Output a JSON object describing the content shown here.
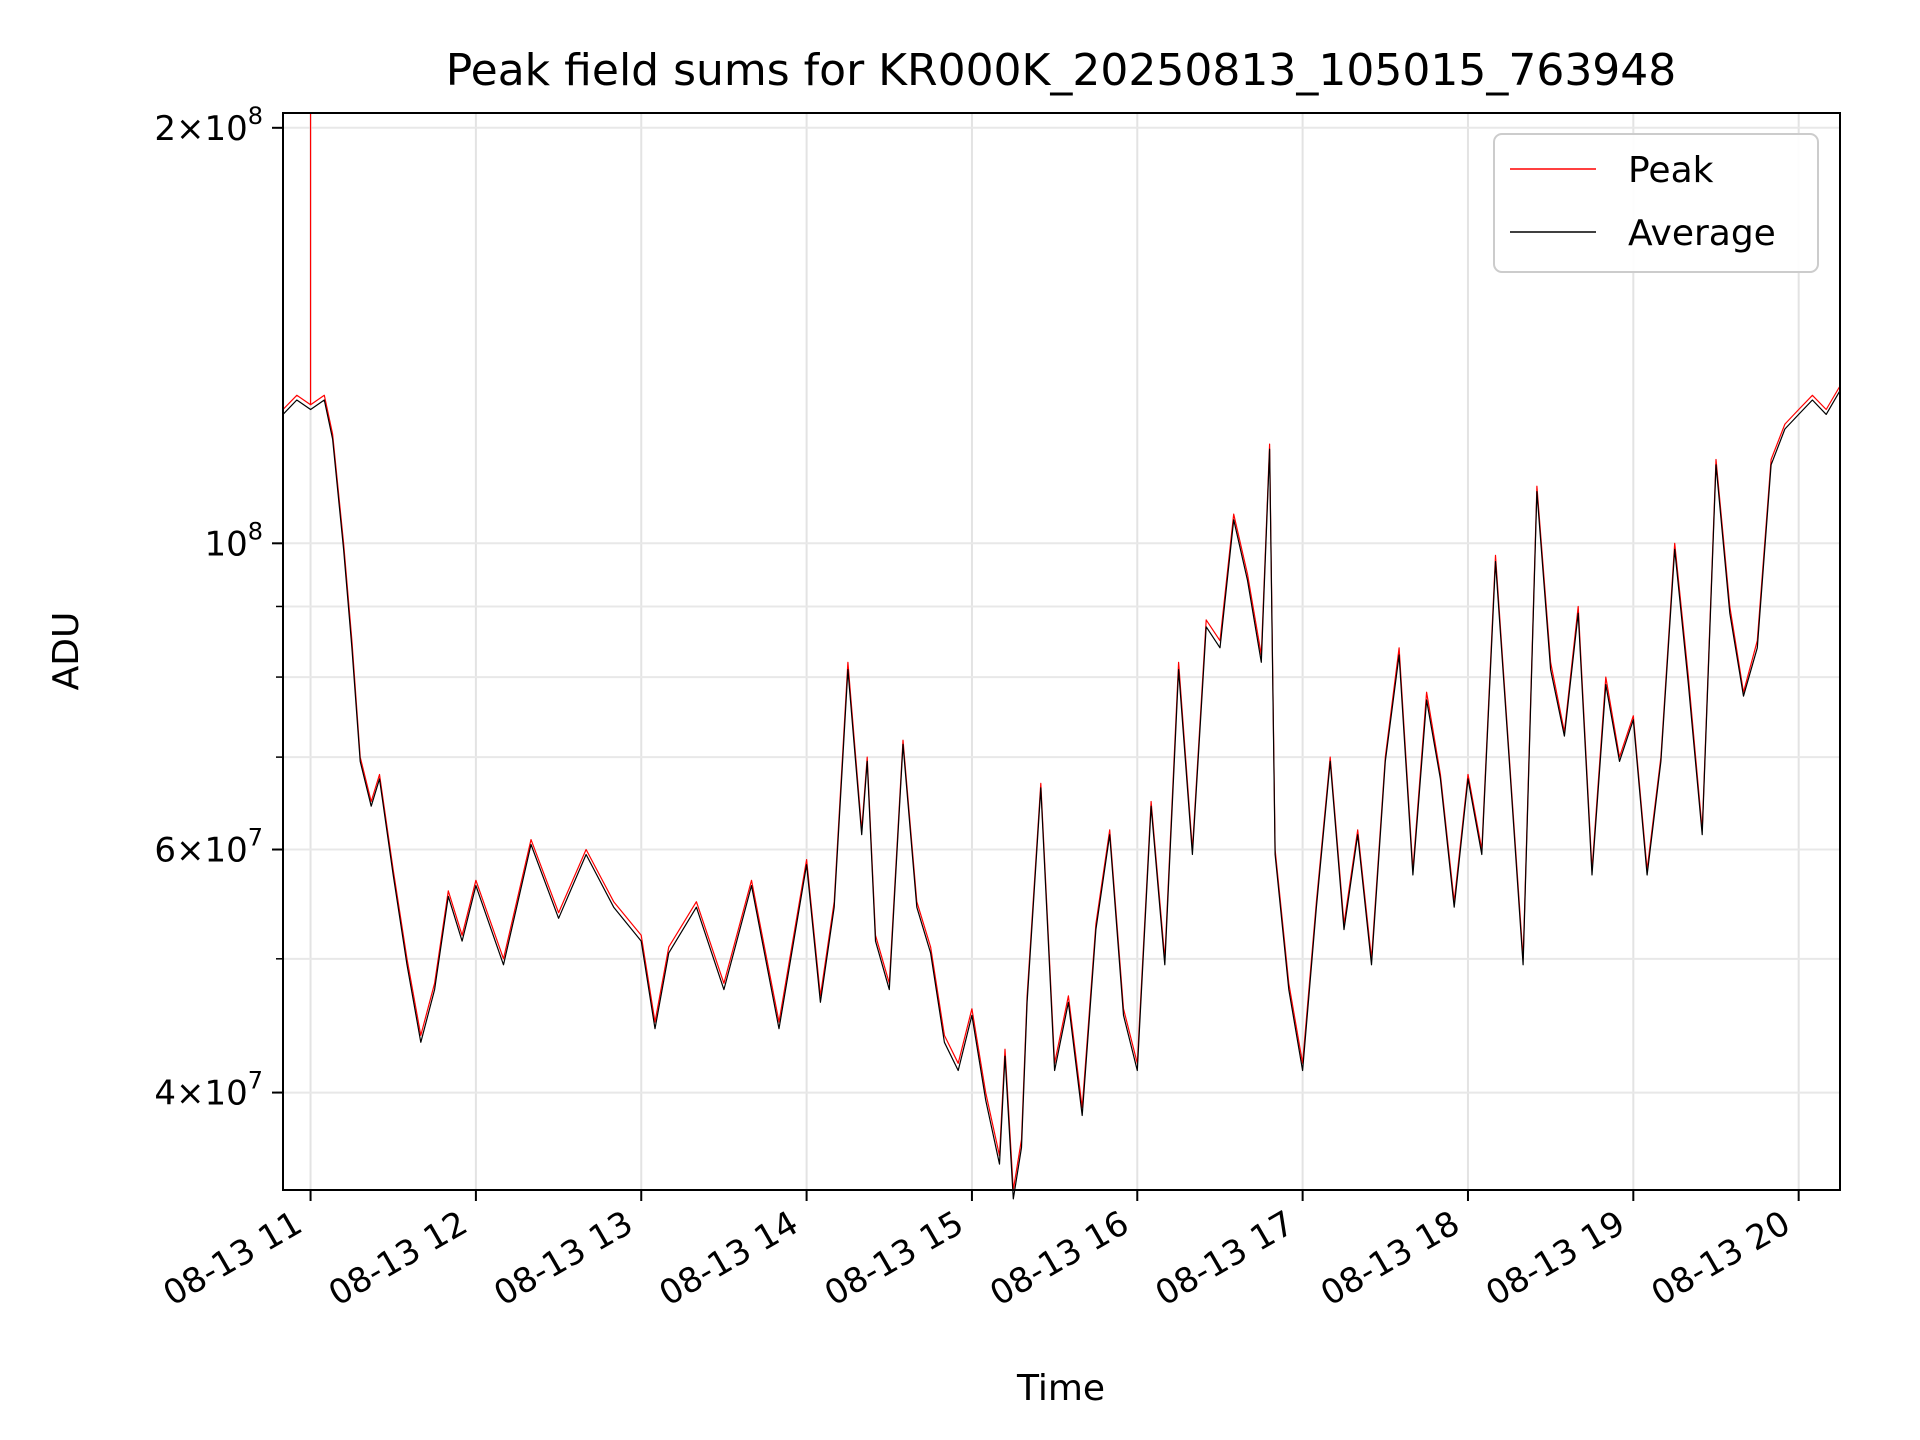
{
  "chart_data": {
    "type": "line",
    "title": "Peak field sums for KR000K_20250813_105015_763948",
    "xlabel": "Time",
    "ylabel": "ADU",
    "yscale": "log",
    "xlim": [
      "2025-08-13T10:50:00",
      "2025-08-13T20:15:00"
    ],
    "ylim": [
      34000000,
      205000000
    ],
    "x_tick_labels": [
      "08-13 11",
      "08-13 12",
      "08-13 13",
      "08-13 14",
      "08-13 15",
      "08-13 16",
      "08-13 17",
      "08-13 18",
      "08-13 19",
      "08-13 20"
    ],
    "y_tick_labels": [
      {
        "value": 40000000,
        "mantissa": "4",
        "exponent": "7"
      },
      {
        "value": 60000000,
        "mantissa": "6",
        "exponent": "7"
      },
      {
        "value": 100000000,
        "mantissa": "",
        "exponent": "8"
      },
      {
        "value": 200000000,
        "mantissa": "2",
        "exponent": "8"
      }
    ],
    "grid": true,
    "legend_position": "top-right",
    "series": [
      {
        "name": "Peak",
        "color": "#ff0000",
        "spike": {
          "x": "2025-08-13T11:00:00",
          "y": 210000000
        },
        "x": [
          "2025-08-13T10:50:00",
          "2025-08-13T10:55:00",
          "2025-08-13T11:00:00",
          "2025-08-13T11:05:00",
          "2025-08-13T11:08:00",
          "2025-08-13T11:12:00",
          "2025-08-13T11:15:00",
          "2025-08-13T11:18:00",
          "2025-08-13T11:22:00",
          "2025-08-13T11:25:00",
          "2025-08-13T11:30:00",
          "2025-08-13T11:35:00",
          "2025-08-13T11:40:00",
          "2025-08-13T11:45:00",
          "2025-08-13T11:50:00",
          "2025-08-13T11:55:00",
          "2025-08-13T12:00:00",
          "2025-08-13T12:10:00",
          "2025-08-13T12:20:00",
          "2025-08-13T12:30:00",
          "2025-08-13T12:40:00",
          "2025-08-13T12:50:00",
          "2025-08-13T13:00:00",
          "2025-08-13T13:05:00",
          "2025-08-13T13:10:00",
          "2025-08-13T13:20:00",
          "2025-08-13T13:30:00",
          "2025-08-13T13:40:00",
          "2025-08-13T13:50:00",
          "2025-08-13T14:00:00",
          "2025-08-13T14:05:00",
          "2025-08-13T14:10:00",
          "2025-08-13T14:15:00",
          "2025-08-13T14:20:00",
          "2025-08-13T14:22:00",
          "2025-08-13T14:25:00",
          "2025-08-13T14:30:00",
          "2025-08-13T14:35:00",
          "2025-08-13T14:40:00",
          "2025-08-13T14:45:00",
          "2025-08-13T14:50:00",
          "2025-08-13T14:55:00",
          "2025-08-13T15:00:00",
          "2025-08-13T15:05:00",
          "2025-08-13T15:10:00",
          "2025-08-13T15:12:00",
          "2025-08-13T15:15:00",
          "2025-08-13T15:18:00",
          "2025-08-13T15:20:00",
          "2025-08-13T15:25:00",
          "2025-08-13T15:30:00",
          "2025-08-13T15:35:00",
          "2025-08-13T15:40:00",
          "2025-08-13T15:45:00",
          "2025-08-13T15:50:00",
          "2025-08-13T15:55:00",
          "2025-08-13T16:00:00",
          "2025-08-13T16:05:00",
          "2025-08-13T16:10:00",
          "2025-08-13T16:15:00",
          "2025-08-13T16:20:00",
          "2025-08-13T16:25:00",
          "2025-08-13T16:30:00",
          "2025-08-13T16:35:00",
          "2025-08-13T16:40:00",
          "2025-08-13T16:45:00",
          "2025-08-13T16:48:00",
          "2025-08-13T16:50:00",
          "2025-08-13T16:55:00",
          "2025-08-13T17:00:00",
          "2025-08-13T17:05:00",
          "2025-08-13T17:10:00",
          "2025-08-13T17:15:00",
          "2025-08-13T17:20:00",
          "2025-08-13T17:25:00",
          "2025-08-13T17:30:00",
          "2025-08-13T17:35:00",
          "2025-08-13T17:40:00",
          "2025-08-13T17:45:00",
          "2025-08-13T17:50:00",
          "2025-08-13T17:55:00",
          "2025-08-13T18:00:00",
          "2025-08-13T18:05:00",
          "2025-08-13T18:10:00",
          "2025-08-13T18:15:00",
          "2025-08-13T18:20:00",
          "2025-08-13T18:25:00",
          "2025-08-13T18:30:00",
          "2025-08-13T18:35:00",
          "2025-08-13T18:40:00",
          "2025-08-13T18:45:00",
          "2025-08-13T18:50:00",
          "2025-08-13T18:55:00",
          "2025-08-13T19:00:00",
          "2025-08-13T19:05:00",
          "2025-08-13T19:10:00",
          "2025-08-13T19:15:00",
          "2025-08-13T19:20:00",
          "2025-08-13T19:25:00",
          "2025-08-13T19:30:00",
          "2025-08-13T19:35:00",
          "2025-08-13T19:40:00",
          "2025-08-13T19:45:00",
          "2025-08-13T19:50:00",
          "2025-08-13T19:55:00",
          "2025-08-13T20:00:00",
          "2025-08-13T20:05:00",
          "2025-08-13T20:10:00",
          "2025-08-13T20:15:00"
        ],
        "y": [
          125000000,
          128000000,
          126000000,
          128000000,
          120000000,
          100000000,
          85000000,
          70000000,
          65000000,
          68000000,
          58000000,
          50000000,
          44000000,
          48000000,
          56000000,
          52000000,
          57000000,
          50000000,
          61000000,
          54000000,
          60000000,
          55000000,
          52000000,
          45000000,
          51000000,
          55000000,
          48000000,
          57000000,
          45000000,
          59000000,
          47000000,
          55000000,
          82000000,
          62000000,
          70000000,
          52000000,
          48000000,
          72000000,
          55000000,
          51000000,
          44000000,
          42000000,
          46000000,
          40000000,
          36000000,
          43000000,
          34000000,
          37000000,
          47000000,
          67000000,
          42000000,
          47000000,
          39000000,
          53000000,
          62000000,
          46000000,
          42000000,
          65000000,
          50000000,
          82000000,
          60000000,
          88000000,
          85000000,
          105000000,
          95000000,
          83000000,
          118000000,
          60000000,
          48000000,
          42000000,
          55000000,
          70000000,
          53000000,
          62000000,
          50000000,
          70000000,
          84000000,
          58000000,
          78000000,
          68000000,
          55000000,
          68000000,
          60000000,
          98000000,
          70000000,
          50000000,
          110000000,
          82000000,
          73000000,
          90000000,
          58000000,
          80000000,
          70000000,
          75000000,
          58000000,
          70000000,
          100000000,
          80000000,
          62000000,
          115000000,
          90000000,
          78000000,
          85000000,
          115000000,
          122000000,
          125000000,
          128000000,
          125000000,
          130000000
        ],
        "width": 1.2
      },
      {
        "name": "Average",
        "color": "#000000",
        "x": [
          "2025-08-13T10:50:00",
          "2025-08-13T10:55:00",
          "2025-08-13T11:00:00",
          "2025-08-13T11:05:00",
          "2025-08-13T11:08:00",
          "2025-08-13T11:12:00",
          "2025-08-13T11:15:00",
          "2025-08-13T11:18:00",
          "2025-08-13T11:22:00",
          "2025-08-13T11:25:00",
          "2025-08-13T11:30:00",
          "2025-08-13T11:35:00",
          "2025-08-13T11:40:00",
          "2025-08-13T11:45:00",
          "2025-08-13T11:50:00",
          "2025-08-13T11:55:00",
          "2025-08-13T12:00:00",
          "2025-08-13T12:10:00",
          "2025-08-13T12:20:00",
          "2025-08-13T12:30:00",
          "2025-08-13T12:40:00",
          "2025-08-13T12:50:00",
          "2025-08-13T13:00:00",
          "2025-08-13T13:05:00",
          "2025-08-13T13:10:00",
          "2025-08-13T13:20:00",
          "2025-08-13T13:30:00",
          "2025-08-13T13:40:00",
          "2025-08-13T13:50:00",
          "2025-08-13T14:00:00",
          "2025-08-13T14:05:00",
          "2025-08-13T14:10:00",
          "2025-08-13T14:15:00",
          "2025-08-13T14:20:00",
          "2025-08-13T14:22:00",
          "2025-08-13T14:25:00",
          "2025-08-13T14:30:00",
          "2025-08-13T14:35:00",
          "2025-08-13T14:40:00",
          "2025-08-13T14:45:00",
          "2025-08-13T14:50:00",
          "2025-08-13T14:55:00",
          "2025-08-13T15:00:00",
          "2025-08-13T15:05:00",
          "2025-08-13T15:10:00",
          "2025-08-13T15:12:00",
          "2025-08-13T15:15:00",
          "2025-08-13T15:18:00",
          "2025-08-13T15:20:00",
          "2025-08-13T15:25:00",
          "2025-08-13T15:30:00",
          "2025-08-13T15:35:00",
          "2025-08-13T15:40:00",
          "2025-08-13T15:45:00",
          "2025-08-13T15:50:00",
          "2025-08-13T15:55:00",
          "2025-08-13T16:00:00",
          "2025-08-13T16:05:00",
          "2025-08-13T16:10:00",
          "2025-08-13T16:15:00",
          "2025-08-13T16:20:00",
          "2025-08-13T16:25:00",
          "2025-08-13T16:30:00",
          "2025-08-13T16:35:00",
          "2025-08-13T16:40:00",
          "2025-08-13T16:45:00",
          "2025-08-13T16:48:00",
          "2025-08-13T16:50:00",
          "2025-08-13T16:55:00",
          "2025-08-13T17:00:00",
          "2025-08-13T17:05:00",
          "2025-08-13T17:10:00",
          "2025-08-13T17:15:00",
          "2025-08-13T17:20:00",
          "2025-08-13T17:25:00",
          "2025-08-13T17:30:00",
          "2025-08-13T17:35:00",
          "2025-08-13T17:40:00",
          "2025-08-13T17:45:00",
          "2025-08-13T17:50:00",
          "2025-08-13T17:55:00",
          "2025-08-13T18:00:00",
          "2025-08-13T18:05:00",
          "2025-08-13T18:10:00",
          "2025-08-13T18:15:00",
          "2025-08-13T18:20:00",
          "2025-08-13T18:25:00",
          "2025-08-13T18:30:00",
          "2025-08-13T18:35:00",
          "2025-08-13T18:40:00",
          "2025-08-13T18:45:00",
          "2025-08-13T18:50:00",
          "2025-08-13T18:55:00",
          "2025-08-13T19:00:00",
          "2025-08-13T19:05:00",
          "2025-08-13T19:10:00",
          "2025-08-13T19:15:00",
          "2025-08-13T19:20:00",
          "2025-08-13T19:25:00",
          "2025-08-13T19:30:00",
          "2025-08-13T19:35:00",
          "2025-08-13T19:40:00",
          "2025-08-13T19:45:00",
          "2025-08-13T19:50:00",
          "2025-08-13T19:55:00",
          "2025-08-13T20:00:00",
          "2025-08-13T20:05:00",
          "2025-08-13T20:10:00",
          "2025-08-13T20:15:00"
        ],
        "y": [
          124000000,
          127000000,
          125000000,
          127000000,
          119000000,
          99000000,
          84000000,
          69500000,
          64500000,
          67500000,
          57500000,
          49500000,
          43500000,
          47500000,
          55500000,
          51500000,
          56500000,
          49500000,
          60500000,
          53500000,
          59500000,
          54500000,
          51500000,
          44500000,
          50500000,
          54500000,
          47500000,
          56500000,
          44500000,
          58500000,
          46500000,
          54500000,
          81000000,
          61500000,
          69500000,
          51500000,
          47500000,
          71500000,
          54500000,
          50500000,
          43500000,
          41500000,
          45500000,
          39500000,
          35500000,
          42500000,
          33500000,
          36500000,
          46500000,
          66500000,
          41500000,
          46500000,
          38500000,
          52500000,
          61500000,
          45500000,
          41500000,
          64500000,
          49500000,
          81000000,
          59500000,
          87000000,
          84000000,
          104000000,
          94000000,
          82000000,
          117000000,
          59500000,
          47500000,
          41500000,
          54500000,
          69500000,
          52500000,
          61500000,
          49500000,
          69500000,
          83000000,
          57500000,
          77000000,
          67500000,
          54500000,
          67500000,
          59500000,
          97000000,
          69500000,
          49500000,
          109000000,
          81000000,
          72500000,
          89000000,
          57500000,
          79000000,
          69500000,
          74500000,
          57500000,
          69500000,
          99000000,
          79000000,
          61500000,
          114000000,
          89000000,
          77500000,
          84000000,
          114000000,
          121000000,
          124000000,
          127000000,
          124000000,
          129000000
        ],
        "width": 1.2
      }
    ]
  }
}
